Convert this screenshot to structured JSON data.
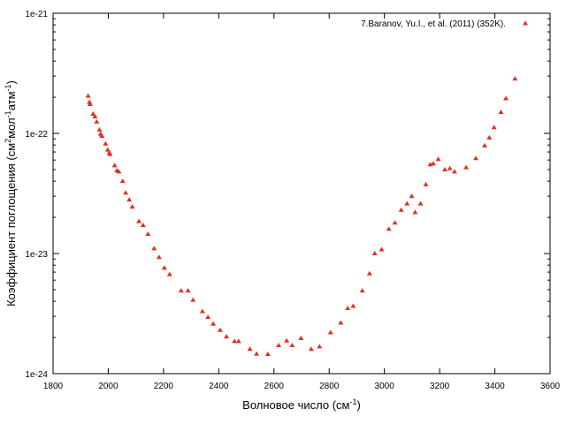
{
  "chart_data": {
    "type": "scatter",
    "xlabel_main": "Волновое число (см",
    "xlabel_sup": "-1",
    "xlabel_tail": ")",
    "ylabel_parts": [
      "Коэффициент поглощения (см",
      "2",
      "мол",
      "-1",
      "атм",
      "-1",
      ")"
    ],
    "xlim": [
      1800,
      3600
    ],
    "ylim": [
      1e-24,
      1e-21
    ],
    "yscale": "log",
    "grid": false,
    "legend_position": "top-right",
    "x_ticks": [
      1800,
      2000,
      2200,
      2400,
      2600,
      2800,
      3000,
      3200,
      3400,
      3600
    ],
    "x_tick_labels": [
      "1800",
      "2000",
      "2200",
      "2400",
      "2600",
      "2800",
      "3000",
      "3200",
      "3400",
      "3600"
    ],
    "y_ticks": [
      1e-24,
      1e-23,
      1e-22,
      1e-21
    ],
    "y_tick_labels": [
      "1e-24",
      "1e-23",
      "1e-22",
      "1e-21"
    ],
    "series": [
      {
        "name": "7.Baranov, Yu.I., et al. (2011) (352K).",
        "color": "#e0301e",
        "marker": "triangle",
        "points": [
          [
            1927,
            2.05e-22
          ],
          [
            1932,
            1.82e-22
          ],
          [
            1934,
            1.75e-22
          ],
          [
            1945,
            1.45e-22
          ],
          [
            1952,
            1.38e-22
          ],
          [
            1958,
            1.25e-22
          ],
          [
            1968,
            1.07e-22
          ],
          [
            1972,
            9.9e-23
          ],
          [
            1977,
            9.5e-23
          ],
          [
            1990,
            8.2e-23
          ],
          [
            1998,
            7.3e-23
          ],
          [
            2004,
            6.9e-23
          ],
          [
            2006,
            6.7e-23
          ],
          [
            2023,
            5.4e-23
          ],
          [
            2031,
            4.9e-23
          ],
          [
            2038,
            4.8e-23
          ],
          [
            2052,
            4e-23
          ],
          [
            2063,
            3.2e-23
          ],
          [
            2076,
            2.8e-23
          ],
          [
            2087,
            2.45e-23
          ],
          [
            2111,
            1.85e-23
          ],
          [
            2126,
            1.72e-23
          ],
          [
            2144,
            1.45e-23
          ],
          [
            2166,
            1.1e-23
          ],
          [
            2184,
            9.3e-24
          ],
          [
            2203,
            7.6e-24
          ],
          [
            2222,
            6.7e-24
          ],
          [
            2264,
            4.9e-24
          ],
          [
            2289,
            4.9e-24
          ],
          [
            2307,
            4.1e-24
          ],
          [
            2341,
            3.3e-24
          ],
          [
            2361,
            2.95e-24
          ],
          [
            2380,
            2.6e-24
          ],
          [
            2405,
            2.3e-24
          ],
          [
            2428,
            2.03e-24
          ],
          [
            2457,
            1.86e-24
          ],
          [
            2472,
            1.86e-24
          ],
          [
            2513,
            1.6e-24
          ],
          [
            2537,
            1.46e-24
          ],
          [
            2578,
            1.45e-24
          ],
          [
            2617,
            1.72e-24
          ],
          [
            2646,
            1.88e-24
          ],
          [
            2666,
            1.72e-24
          ],
          [
            2698,
            1.97e-24
          ],
          [
            2735,
            1.6e-24
          ],
          [
            2765,
            1.68e-24
          ],
          [
            2805,
            2.2e-24
          ],
          [
            2842,
            2.65e-24
          ],
          [
            2867,
            3.5e-24
          ],
          [
            2887,
            3.65e-24
          ],
          [
            2920,
            4.9e-24
          ],
          [
            2946,
            6.8e-24
          ],
          [
            2965,
            1e-23
          ],
          [
            2990,
            1.08e-23
          ],
          [
            3016,
            1.6e-23
          ],
          [
            3038,
            1.8e-23
          ],
          [
            3061,
            2.3e-23
          ],
          [
            3082,
            2.6e-23
          ],
          [
            3099,
            3e-23
          ],
          [
            3111,
            2.2e-23
          ],
          [
            3131,
            2.6e-23
          ],
          [
            3150,
            3.75e-23
          ],
          [
            3166,
            5.5e-23
          ],
          [
            3177,
            5.6e-23
          ],
          [
            3195,
            6.1e-23
          ],
          [
            3219,
            5e-23
          ],
          [
            3237,
            5.1e-23
          ],
          [
            3254,
            4.8e-23
          ],
          [
            3296,
            5.2e-23
          ],
          [
            3331,
            6.2e-23
          ],
          [
            3363,
            7.9e-23
          ],
          [
            3380,
            9.2e-23
          ],
          [
            3397,
            1.12e-22
          ],
          [
            3422,
            1.5e-22
          ],
          [
            3440,
            1.95e-22
          ],
          [
            3473,
            2.85e-22
          ]
        ]
      }
    ]
  }
}
